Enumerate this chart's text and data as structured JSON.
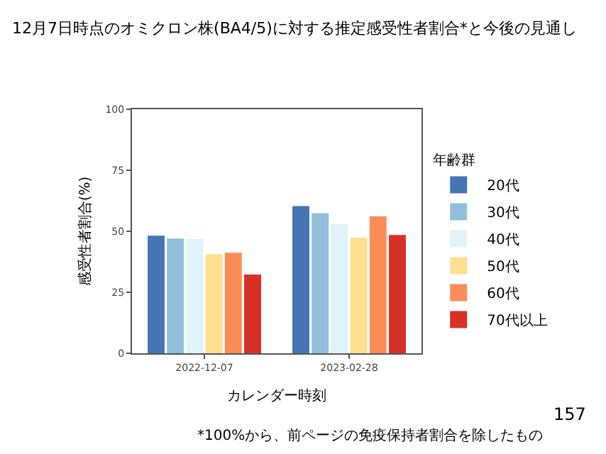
{
  "chart_data": {
    "type": "bar",
    "title": "12月7日時点のオミクロン株(BA4/5)に対する推定感受性者割合*と今後の見通し",
    "xlabel": "カレンダー時刻",
    "ylabel": "感受性者割合(%)",
    "legend_title": "年齢群",
    "categories": [
      "2022-12-07",
      "2023-02-28"
    ],
    "series": [
      {
        "name": "20代",
        "color": "#4575b4",
        "values": [
          48.2,
          60.3
        ]
      },
      {
        "name": "30代",
        "color": "#91bfdb",
        "values": [
          47.0,
          57.4
        ]
      },
      {
        "name": "40代",
        "color": "#e0f3f8",
        "values": [
          46.8,
          53.0
        ]
      },
      {
        "name": "50代",
        "color": "#fee090",
        "values": [
          40.6,
          47.4
        ]
      },
      {
        "name": "60代",
        "color": "#fc8d59",
        "values": [
          41.2,
          56.1
        ]
      },
      {
        "name": "70代以上",
        "color": "#d73027",
        "values": [
          32.3,
          48.5
        ]
      }
    ],
    "ylim": [
      0,
      100
    ],
    "yticks": [
      0,
      25,
      50,
      75,
      100
    ],
    "grid": false,
    "legend": "right",
    "annotations": [
      "*100%から、前ページの免疫保持者割合を除したもの",
      "157"
    ]
  }
}
